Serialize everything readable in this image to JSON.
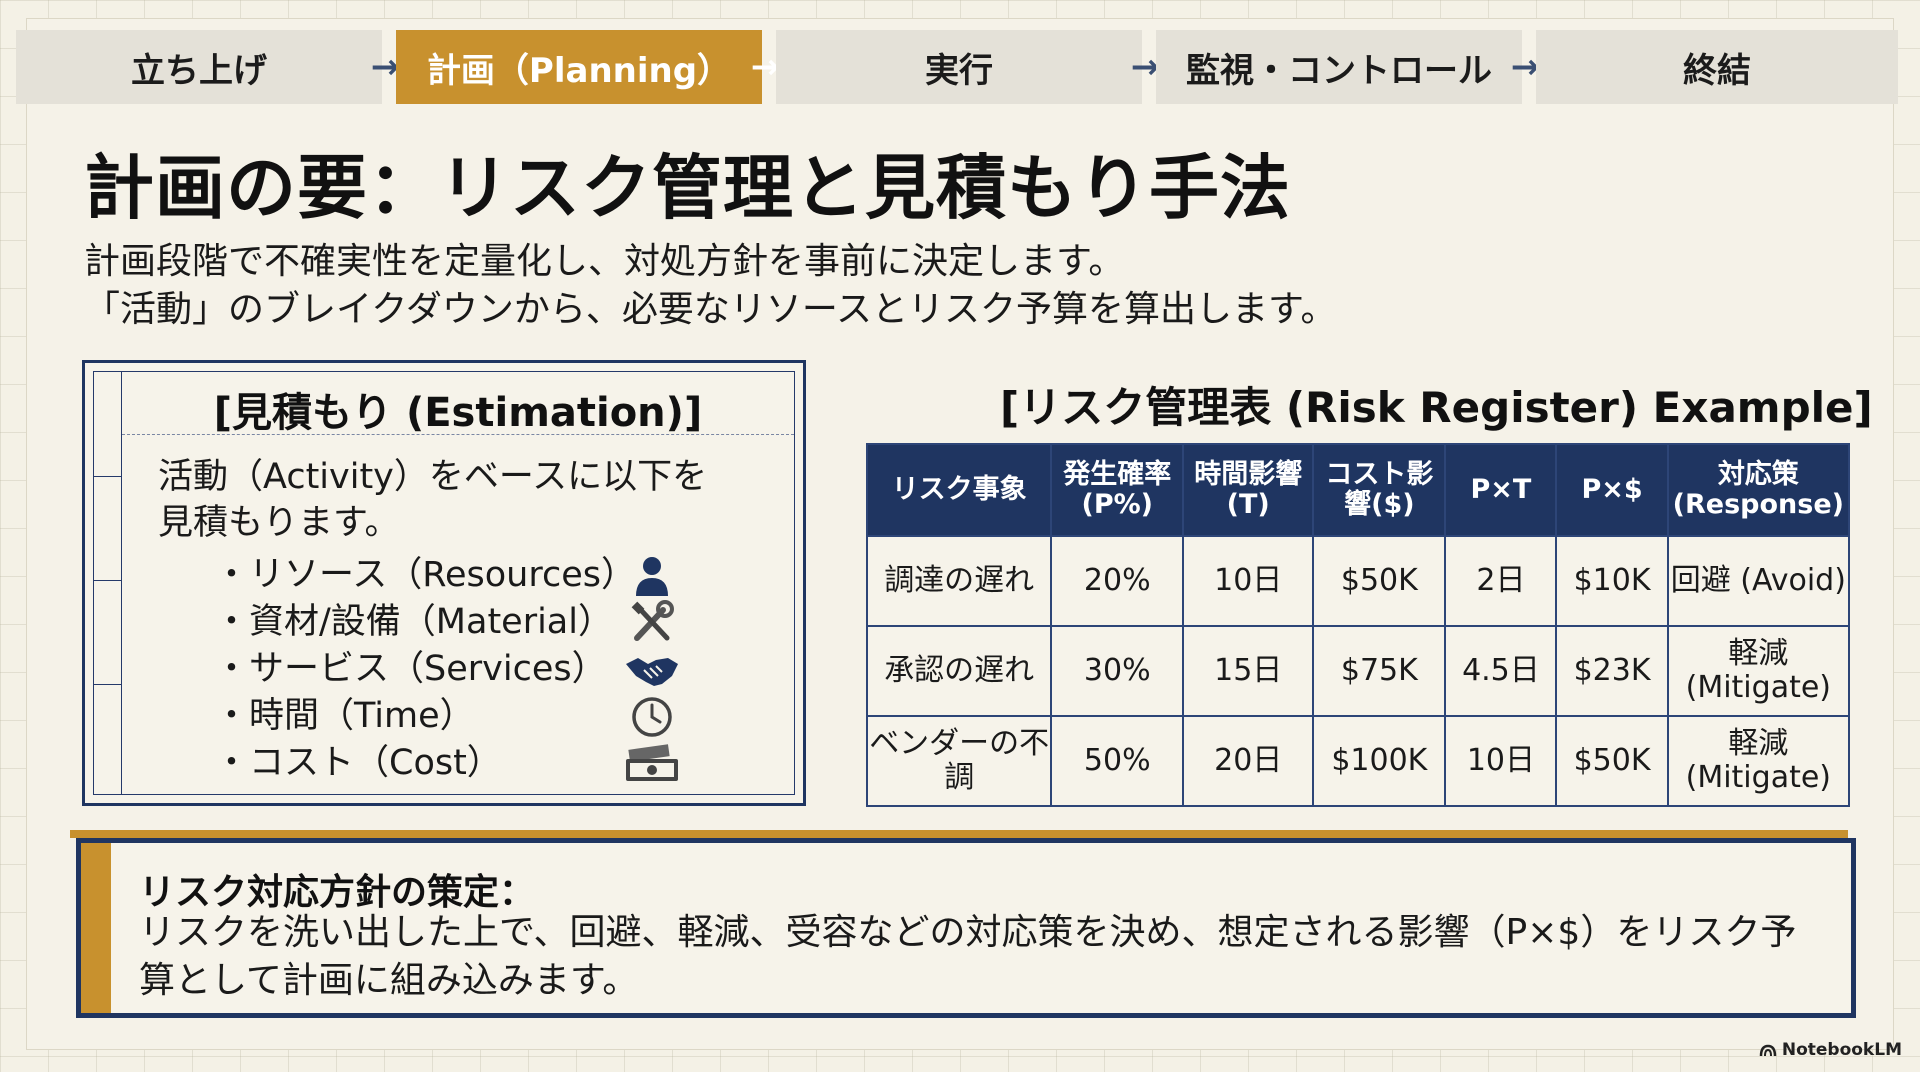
{
  "process": {
    "steps": [
      {
        "label": "立ち上げ",
        "active": false
      },
      {
        "label": "計画（Planning）",
        "active": true
      },
      {
        "label": "実行",
        "active": false
      },
      {
        "label": "監視・コントロール",
        "active": false
      },
      {
        "label": "終結",
        "active": false
      }
    ],
    "arrow_glyph": "→"
  },
  "title": "計画の要：リスク管理と見積もり手法",
  "intro": {
    "line1": "計画段階で不確実性を定量化し、対処方針を事前に決定します。",
    "line2": "「活動」のブレイクダウンから、必要なリソースとリスク予算を算出します。"
  },
  "estimation": {
    "title": "[見積もり (Estimation)]",
    "desc": "活動（Activity）をベースに以下を見積もります。",
    "items": [
      {
        "label": "・リソース（Resources）",
        "icon": "person-icon"
      },
      {
        "label": "・資材/設備（Material）",
        "icon": "tools-icon"
      },
      {
        "label": "・サービス（Services）",
        "icon": "handshake-icon"
      },
      {
        "label": "・時間（Time）",
        "icon": "clock-icon"
      },
      {
        "label": "・コスト（Cost）",
        "icon": "money-icon"
      }
    ]
  },
  "risk_register": {
    "title": "[リスク管理表 (Risk Register) Example]",
    "headers": [
      "リスク事象",
      "発生確率 (P%)",
      "時間影響 (T)",
      "コスト影響($)",
      "P×T",
      "P×$",
      "対応策 (Response)"
    ],
    "rows": [
      [
        "調達の遅れ",
        "20%",
        "10日",
        "$50K",
        "2日",
        "$10K",
        "回避 (Avoid)"
      ],
      [
        "承認の遅れ",
        "30%",
        "15日",
        "$75K",
        "4.5日",
        "$23K",
        "軽減 (Mitigate)"
      ],
      [
        "ベンダーの不調",
        "50%",
        "20日",
        "$100K",
        "10日",
        "$50K",
        "軽減 (Mitigate)"
      ]
    ]
  },
  "note": {
    "heading": "リスク対応方針の策定：",
    "body": "リスクを洗い出した上で、回避、軽減、受容などの対応策を決め、想定される影響（P×$）をリスク予算として計画に組み込みます。"
  },
  "brand": "NotebookLM",
  "colors": {
    "navy": "#1f3561",
    "gold": "#c8912e",
    "background": "#f4f1e6",
    "step_inactive": "#e4e1d8"
  }
}
